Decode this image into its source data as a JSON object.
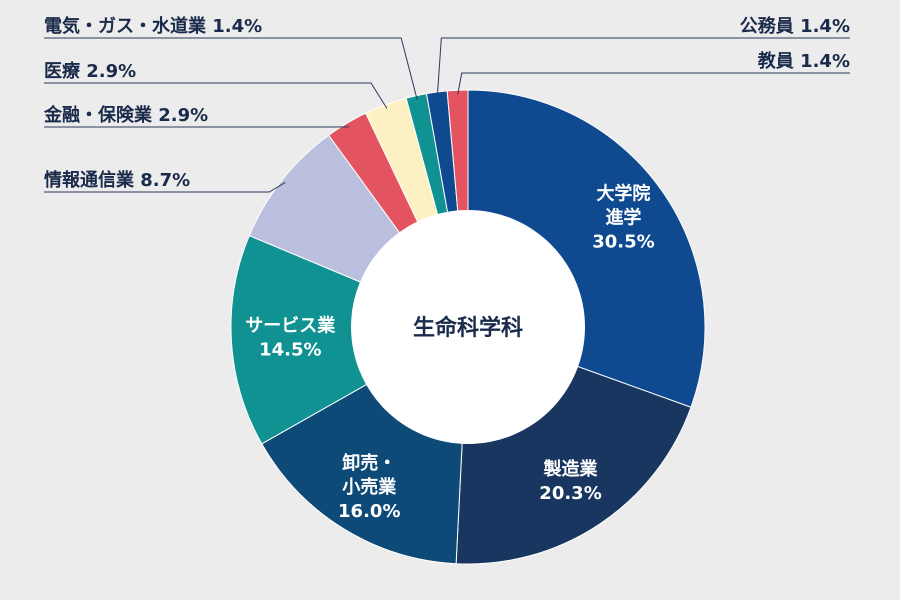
{
  "chart_data": {
    "type": "pie",
    "title": "生命科学科",
    "slices": [
      {
        "lines": [
          "大学院",
          "進学"
        ],
        "percent_label": "30.5%",
        "value": 30.5,
        "color": "#0f4a91"
      },
      {
        "lines": [
          "製造業"
        ],
        "percent_label": "20.3%",
        "value": 20.3,
        "color": "#18365f"
      },
      {
        "lines": [
          "卸売・",
          "小売業"
        ],
        "percent_label": "16.0%",
        "value": 16.0,
        "color": "#0e4a78"
      },
      {
        "lines": [
          "サービス業"
        ],
        "percent_label": "14.5%",
        "value": 14.5,
        "color": "#0f9291"
      },
      {
        "lines": [
          "情報通信業"
        ],
        "percent_label": "8.7%",
        "value": 8.7,
        "color": "#babfdd"
      },
      {
        "lines": [
          "金融・保険業"
        ],
        "percent_label": "2.9%",
        "value": 2.9,
        "color": "#e35460"
      },
      {
        "lines": [
          "医療"
        ],
        "percent_label": "2.9%",
        "value": 2.9,
        "color": "#fdf1c3"
      },
      {
        "lines": [
          "電気・ガス・水道業"
        ],
        "percent_label": "1.4%",
        "value": 1.4,
        "color": "#0f9291"
      },
      {
        "lines": [
          "公務員"
        ],
        "percent_label": "1.4%",
        "value": 1.4,
        "color": "#0f4a91"
      },
      {
        "lines": [
          "教員"
        ],
        "percent_label": "1.4%",
        "value": 1.4,
        "color": "#e35460"
      }
    ]
  }
}
